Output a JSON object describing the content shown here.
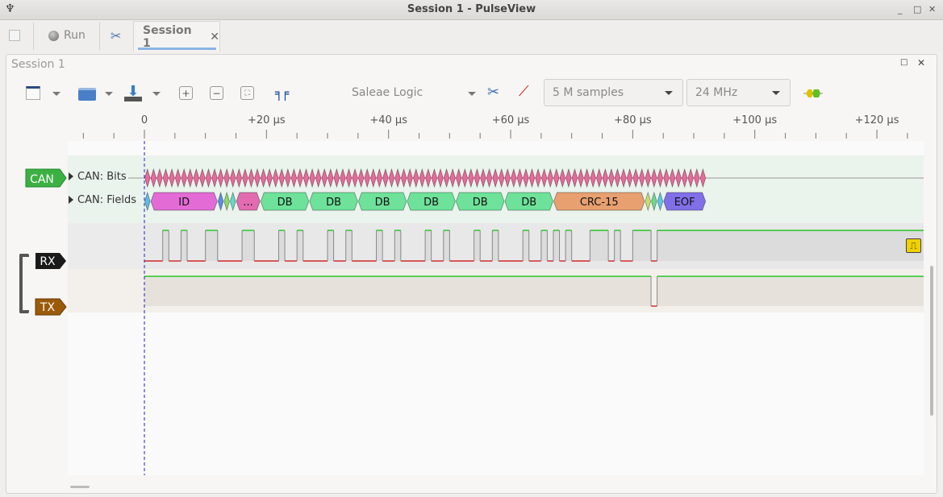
{
  "window": {
    "title": "Session 1 - PulseView"
  },
  "tabbar": {
    "run_label": "Run",
    "session_tab_label": "Session 1"
  },
  "session": {
    "label": "Session 1"
  },
  "toolbar": {
    "device": "Saleae Logic",
    "samples": "5 M samples",
    "samplerate": "24 MHz"
  },
  "ruler": {
    "unit": "µs",
    "labels": [
      "0",
      "+20 µs",
      "+40 µs",
      "+60 µs",
      "+80 µs",
      "+100 µs",
      "+120 µs"
    ],
    "label_values": [
      0,
      20,
      40,
      60,
      80,
      100,
      120
    ],
    "minor_step": 5,
    "range": [
      -10,
      125
    ]
  },
  "decoder": {
    "tag": "CAN",
    "color": "#3cb043",
    "rows": [
      {
        "label": "CAN: Bits"
      },
      {
        "label": "CAN: Fields"
      }
    ],
    "bits": {
      "start": 0,
      "end": 92,
      "color": "#e8699a"
    },
    "fields": [
      {
        "t0": 0,
        "t1": 1,
        "text": "",
        "color": "#5bbde4"
      },
      {
        "t0": 1,
        "t1": 12,
        "text": "ID",
        "color": "#e36bd6"
      },
      {
        "t0": 12,
        "t1": 13,
        "text": "",
        "color": "#5a8ee0"
      },
      {
        "t0": 13,
        "t1": 14,
        "text": "",
        "color": "#8ed66a"
      },
      {
        "t0": 14,
        "t1": 15,
        "text": "",
        "color": "#66d8c8"
      },
      {
        "t0": 15,
        "t1": 19,
        "text": "...",
        "color": "#e36bb0"
      },
      {
        "t0": 19,
        "t1": 27,
        "text": "DB",
        "color": "#6ee29a"
      },
      {
        "t0": 27,
        "t1": 35,
        "text": "DB",
        "color": "#6ee29a"
      },
      {
        "t0": 35,
        "t1": 43,
        "text": "DB",
        "color": "#6ee29a"
      },
      {
        "t0": 43,
        "t1": 51,
        "text": "DB",
        "color": "#6ee29a"
      },
      {
        "t0": 51,
        "t1": 59,
        "text": "DB",
        "color": "#6ee29a"
      },
      {
        "t0": 59,
        "t1": 67,
        "text": "DB",
        "color": "#6ee29a"
      },
      {
        "t0": 67,
        "t1": 82,
        "text": "CRC-15",
        "color": "#e8a070"
      },
      {
        "t0": 82,
        "t1": 83,
        "text": "",
        "color": "#c8e070"
      },
      {
        "t0": 83,
        "t1": 84,
        "text": "",
        "color": "#70d890"
      },
      {
        "t0": 84,
        "t1": 85,
        "text": "",
        "color": "#5bc8e4"
      },
      {
        "t0": 85,
        "t1": 92,
        "text": "EOF",
        "color": "#8070e8"
      }
    ]
  },
  "channels": [
    {
      "name": "RX",
      "color": "#1a1a1a",
      "initial": 0,
      "high_intervals": [
        [
          3,
          4
        ],
        [
          6,
          7
        ],
        [
          10,
          12
        ],
        [
          16,
          18
        ],
        [
          22,
          23
        ],
        [
          25,
          26
        ],
        [
          30,
          31
        ],
        [
          33,
          34
        ],
        [
          38,
          39
        ],
        [
          41,
          42
        ],
        [
          46,
          47
        ],
        [
          49,
          50
        ],
        [
          54,
          55
        ],
        [
          57,
          58
        ],
        [
          62,
          63
        ],
        [
          65,
          66
        ],
        [
          67,
          68
        ],
        [
          69,
          70
        ],
        [
          73,
          76
        ],
        [
          77,
          78
        ],
        [
          80,
          83
        ],
        [
          84,
          128
        ]
      ]
    },
    {
      "name": "TX",
      "color": "#9a5a0a",
      "initial": 1,
      "low_intervals": [
        [
          83,
          84
        ]
      ]
    }
  ],
  "colors": {
    "high": "#00c000",
    "low": "#d00000",
    "cursor": "#2020c0"
  }
}
